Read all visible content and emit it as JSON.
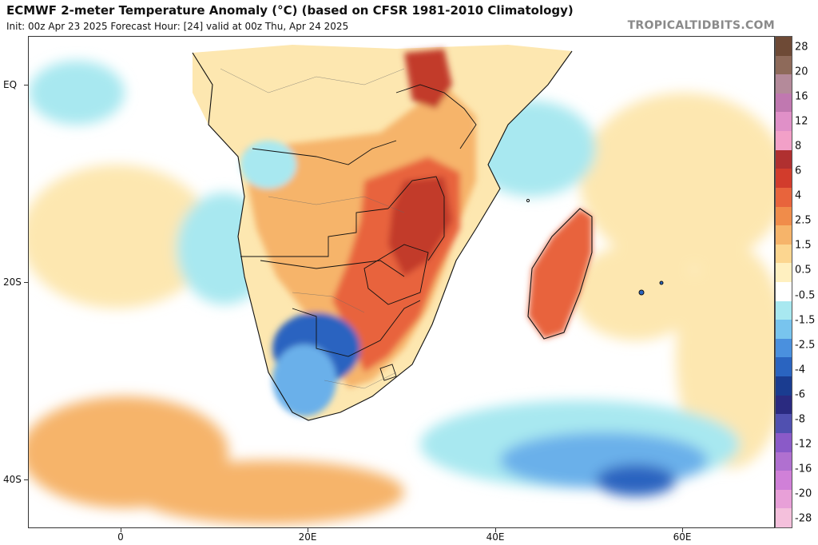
{
  "header": {
    "title": "ECMWF 2-meter Temperature Anomaly (°C) (based on CFSR 1981-2010 Climatology)",
    "subtitle": "Init: 00z Apr 23 2025   Forecast Hour: [24]   valid at 00z Thu, Apr 24 2025",
    "brand": "TROPICALTIDBITS.COM"
  },
  "axes": {
    "lat_labels": [
      "EQ",
      "20S",
      "40S"
    ],
    "lon_labels": [
      "0",
      "20E",
      "40E",
      "60E"
    ]
  },
  "colorbar": {
    "labels": [
      "28",
      "20",
      "16",
      "12",
      "8",
      "6",
      "4",
      "2.5",
      "1.5",
      "0.5",
      "-0.5",
      "-1.5",
      "-2.5",
      "-4",
      "-6",
      "-8",
      "-12",
      "-16",
      "-20",
      "-28"
    ],
    "colors": [
      "#6e4a36",
      "#8e6a5a",
      "#b48a9a",
      "#c078b0",
      "#e090c8",
      "#f2a0c8",
      "#b03030",
      "#d23c2c",
      "#e8643c",
      "#f08c4a",
      "#f6b46a",
      "#fcd690",
      "#fff0c0",
      "#ffffff",
      "#a8e8f0",
      "#78c4ee",
      "#4a90de",
      "#2a64c0",
      "#1a3c90",
      "#2a2a80",
      "#5050b0",
      "#8a5ac8",
      "#b070d0",
      "#d080d8",
      "#e8a0d8",
      "#f4c0dc"
    ]
  },
  "map_colors": {
    "ocean_neutral": "#ffffff",
    "warm_light": "#fde7b0",
    "warm_mid": "#f6b46a",
    "warm_strong": "#e8643c",
    "hot": "#c23a2c",
    "cool_light": "#a8e8f0",
    "cool_mid": "#6ab0ea",
    "cool_strong": "#2a64c0",
    "border": "#111111"
  }
}
